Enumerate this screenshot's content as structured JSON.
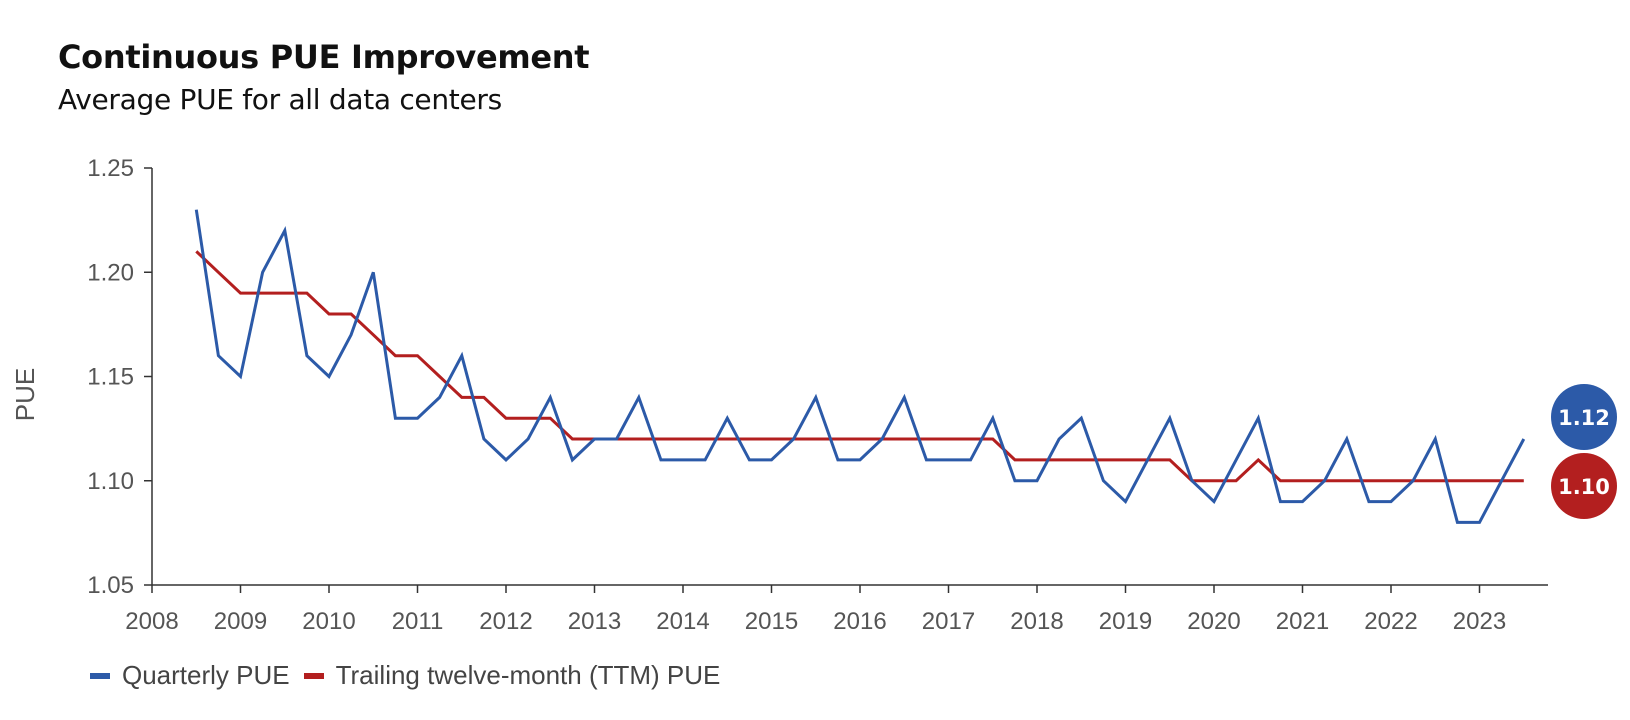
{
  "title": "Continuous PUE Improvement",
  "subtitle": "Average PUE for all data centers",
  "colors": {
    "quarterly": "#2C5AA8",
    "ttm": "#B31F1F",
    "axis": "#333333",
    "tick_text": "#555555"
  },
  "badges": {
    "quarterly": "1.12",
    "ttm": "1.10"
  },
  "chart_data": {
    "type": "line",
    "ylabel": "PUE",
    "xlabel": "",
    "ylim": [
      1.05,
      1.25
    ],
    "yticks": [
      "1.25",
      "1.20",
      "1.15",
      "1.10",
      "1.05"
    ],
    "xlim": [
      2008,
      2023.75
    ],
    "xticks": [
      "2008",
      "2009",
      "2010",
      "2011",
      "2012",
      "2013",
      "2014",
      "2015",
      "2016",
      "2017",
      "2018",
      "2019",
      "2020",
      "2021",
      "2022",
      "2023"
    ],
    "grid": false,
    "legend_position": "bottom-left",
    "series": [
      {
        "name": "Quarterly PUE",
        "x": [
          2008.5,
          2008.75,
          2009,
          2009.25,
          2009.5,
          2009.75,
          2010,
          2010.25,
          2010.5,
          2010.75,
          2011,
          2011.25,
          2011.5,
          2011.75,
          2012,
          2012.25,
          2012.5,
          2012.75,
          2013,
          2013.25,
          2013.5,
          2013.75,
          2014,
          2014.25,
          2014.5,
          2014.75,
          2015,
          2015.25,
          2015.5,
          2015.75,
          2016,
          2016.25,
          2016.5,
          2016.75,
          2017,
          2017.25,
          2017.5,
          2017.75,
          2018,
          2018.25,
          2018.5,
          2018.75,
          2019,
          2019.25,
          2019.5,
          2019.75,
          2020,
          2020.25,
          2020.5,
          2020.75,
          2021,
          2021.25,
          2021.5,
          2021.75,
          2022,
          2022.25,
          2022.5,
          2022.75,
          2023,
          2023.25,
          2023.5
        ],
        "y": [
          1.23,
          1.16,
          1.15,
          1.2,
          1.22,
          1.16,
          1.15,
          1.17,
          1.2,
          1.13,
          1.13,
          1.14,
          1.16,
          1.12,
          1.11,
          1.12,
          1.14,
          1.11,
          1.12,
          1.12,
          1.14,
          1.11,
          1.11,
          1.11,
          1.13,
          1.11,
          1.11,
          1.12,
          1.14,
          1.11,
          1.11,
          1.12,
          1.14,
          1.11,
          1.11,
          1.11,
          1.13,
          1.1,
          1.1,
          1.12,
          1.13,
          1.1,
          1.09,
          1.11,
          1.13,
          1.1,
          1.09,
          1.11,
          1.13,
          1.09,
          1.09,
          1.1,
          1.12,
          1.09,
          1.09,
          1.1,
          1.12,
          1.08,
          1.08,
          1.1,
          1.12
        ]
      },
      {
        "name": "Trailing twelve-month (TTM) PUE",
        "x": [
          2008.5,
          2008.75,
          2009,
          2009.25,
          2009.5,
          2009.75,
          2010,
          2010.25,
          2010.5,
          2010.75,
          2011,
          2011.25,
          2011.5,
          2011.75,
          2012,
          2012.25,
          2012.5,
          2012.75,
          2013,
          2013.25,
          2013.5,
          2013.75,
          2014,
          2014.25,
          2014.5,
          2014.75,
          2015,
          2015.25,
          2015.5,
          2015.75,
          2016,
          2016.25,
          2016.5,
          2016.75,
          2017,
          2017.25,
          2017.5,
          2017.75,
          2018,
          2018.25,
          2018.5,
          2018.75,
          2019,
          2019.25,
          2019.5,
          2019.75,
          2020,
          2020.25,
          2020.5,
          2020.75,
          2021,
          2021.25,
          2021.5,
          2021.75,
          2022,
          2022.25,
          2022.5,
          2022.75,
          2023,
          2023.25,
          2023.5
        ],
        "y": [
          1.21,
          1.2,
          1.19,
          1.19,
          1.19,
          1.19,
          1.18,
          1.18,
          1.17,
          1.16,
          1.16,
          1.15,
          1.14,
          1.14,
          1.13,
          1.13,
          1.13,
          1.12,
          1.12,
          1.12,
          1.12,
          1.12,
          1.12,
          1.12,
          1.12,
          1.12,
          1.12,
          1.12,
          1.12,
          1.12,
          1.12,
          1.12,
          1.12,
          1.12,
          1.12,
          1.12,
          1.12,
          1.11,
          1.11,
          1.11,
          1.11,
          1.11,
          1.11,
          1.11,
          1.11,
          1.1,
          1.1,
          1.1,
          1.11,
          1.1,
          1.1,
          1.1,
          1.1,
          1.1,
          1.1,
          1.1,
          1.1,
          1.1,
          1.1,
          1.1,
          1.1
        ]
      }
    ]
  }
}
